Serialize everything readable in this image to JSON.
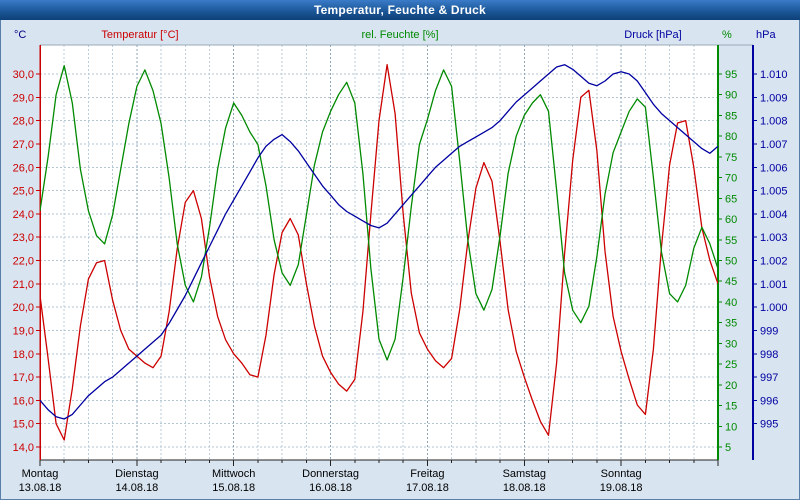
{
  "header": {
    "title": "Temperatur, Feuchte & Druck"
  },
  "chart_data": {
    "type": "line",
    "title": "Temperatur, Feuchte & Druck",
    "x_range_hours": [
      0,
      168
    ],
    "x_step_hours": 2,
    "x_grid_step_hours": 6,
    "grid": {
      "style": "dashed",
      "color": "#b3c6d2"
    },
    "plot_background": "#ffffff",
    "legend_position": "top",
    "days": [
      {
        "name": "Montag",
        "date": "13.08.18"
      },
      {
        "name": "Dienstag",
        "date": "14.08.18"
      },
      {
        "name": "Mittwoch",
        "date": "15.08.18"
      },
      {
        "name": "Donnerstag",
        "date": "16.08.18"
      },
      {
        "name": "Freitag",
        "date": "17.08.18"
      },
      {
        "name": "Samstag",
        "date": "18.08.18"
      },
      {
        "name": "Sonntag",
        "date": "19.08.18"
      }
    ],
    "axes": {
      "temperature": {
        "unit": "°C",
        "unit_color": "#000080",
        "color": "#cc0000",
        "min": 14,
        "max": 30,
        "step": 1,
        "labels": [
          "30,0",
          "29,0",
          "28,0",
          "27,0",
          "26,0",
          "25,0",
          "24,0",
          "23,0",
          "22,0",
          "21,0",
          "20,0",
          "19,0",
          "18,0",
          "17,0",
          "16,0",
          "15,0",
          "14,0"
        ]
      },
      "humidity": {
        "unit": "%",
        "color": "#008a00",
        "min": 5,
        "max": 95,
        "step": 5,
        "labels": [
          "95",
          "90",
          "85",
          "80",
          "75",
          "70",
          "65",
          "60",
          "55",
          "50",
          "45",
          "40",
          "35",
          "30",
          "25",
          "20",
          "15",
          "10",
          "5"
        ]
      },
      "pressure": {
        "unit": "hPa",
        "color": "#0000a0",
        "min": 995,
        "max": 1010,
        "step": 1,
        "labels": [
          "1.010",
          "1.009",
          "1.008",
          "1.007",
          "1.006",
          "1.005",
          "1.004",
          "1.003",
          "1.002",
          "1.001",
          "1.000",
          "999",
          "998",
          "997",
          "996",
          "995"
        ]
      }
    },
    "series": [
      {
        "name": "Temperatur [°C]",
        "axis": "temperature",
        "color": "#cc0000",
        "values": [
          20.5,
          17.8,
          15.0,
          14.3,
          16.5,
          19.2,
          21.2,
          21.9,
          22.0,
          20.3,
          19.0,
          18.2,
          17.9,
          17.6,
          17.4,
          17.9,
          19.8,
          22.5,
          24.5,
          25.0,
          23.8,
          21.3,
          19.6,
          18.6,
          18.0,
          17.6,
          17.1,
          17.0,
          18.8,
          21.4,
          23.2,
          23.8,
          23.1,
          21.0,
          19.2,
          17.9,
          17.2,
          16.7,
          16.4,
          16.9,
          19.8,
          24.0,
          28.0,
          30.4,
          28.3,
          24.0,
          20.6,
          18.9,
          18.2,
          17.7,
          17.4,
          17.8,
          19.9,
          22.8,
          25.1,
          26.2,
          25.4,
          22.8,
          19.9,
          18.1,
          17.0,
          16.0,
          15.1,
          14.5,
          17.6,
          22.3,
          26.3,
          29.0,
          29.3,
          26.7,
          22.4,
          19.6,
          18.1,
          16.9,
          15.8,
          15.4,
          18.2,
          22.6,
          26.1,
          27.9,
          28.0,
          26.0,
          23.4,
          22.0,
          21.0
        ]
      },
      {
        "name": "rel. Feuchte [%]",
        "axis": "humidity",
        "color": "#008a00",
        "values": [
          62,
          75,
          90,
          97,
          88,
          72,
          62,
          56,
          54,
          61,
          72,
          83,
          92,
          96,
          91,
          83,
          70,
          54,
          44,
          40,
          46,
          58,
          72,
          82,
          88,
          85,
          81,
          78,
          68,
          55,
          47,
          44,
          49,
          61,
          73,
          81,
          86,
          90,
          93,
          88,
          71,
          48,
          31,
          26,
          31,
          46,
          63,
          78,
          84,
          91,
          96,
          92,
          74,
          55,
          42,
          38,
          43,
          56,
          71,
          80,
          85,
          88,
          90,
          86,
          67,
          47,
          38,
          35,
          39,
          51,
          66,
          76,
          81,
          86,
          89,
          87,
          70,
          52,
          42,
          40,
          44,
          53,
          58,
          54,
          48
        ]
      },
      {
        "name": "Druck [hPa]",
        "axis": "pressure",
        "color": "#0000a0",
        "values": [
          996.0,
          995.6,
          995.3,
          995.2,
          995.4,
          995.8,
          996.2,
          996.5,
          996.8,
          997.0,
          997.3,
          997.6,
          997.9,
          998.2,
          998.5,
          998.8,
          999.3,
          999.9,
          1000.5,
          1001.2,
          1001.9,
          1002.6,
          1003.3,
          1004.0,
          1004.6,
          1005.2,
          1005.8,
          1006.4,
          1006.9,
          1007.2,
          1007.4,
          1007.1,
          1006.7,
          1006.2,
          1005.7,
          1005.2,
          1004.8,
          1004.4,
          1004.1,
          1003.9,
          1003.7,
          1003.5,
          1003.4,
          1003.6,
          1004.0,
          1004.4,
          1004.8,
          1005.2,
          1005.6,
          1006.0,
          1006.3,
          1006.6,
          1006.9,
          1007.1,
          1007.3,
          1007.5,
          1007.7,
          1008.0,
          1008.4,
          1008.8,
          1009.1,
          1009.4,
          1009.7,
          1010.0,
          1010.3,
          1010.4,
          1010.2,
          1009.9,
          1009.6,
          1009.5,
          1009.7,
          1010.0,
          1010.1,
          1010.0,
          1009.7,
          1009.2,
          1008.7,
          1008.3,
          1008.0,
          1007.7,
          1007.4,
          1007.1,
          1006.8,
          1006.6,
          1006.9
        ]
      }
    ]
  },
  "theme": {
    "titlebar_color": "#1c5799",
    "title_text_color": "#ffffff",
    "background": "#d8e4f0"
  }
}
